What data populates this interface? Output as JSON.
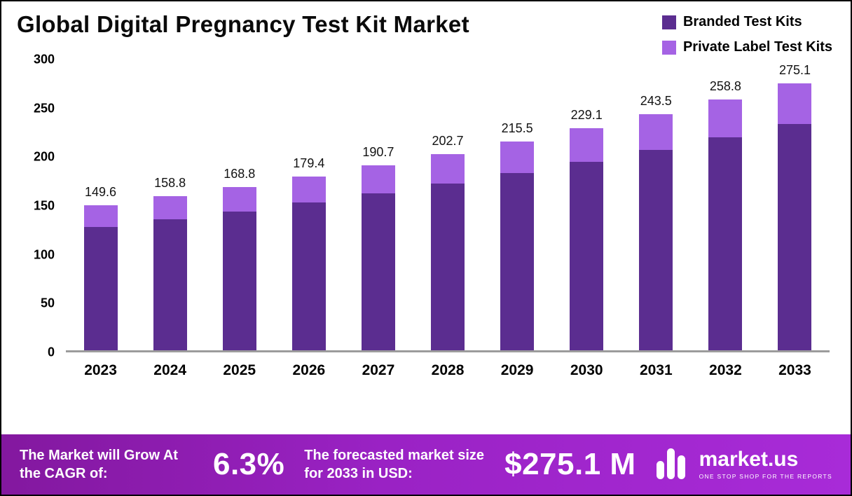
{
  "title": "Global Digital Pregnancy Test Kit Market",
  "legend": [
    {
      "label": "Branded Test Kits",
      "color": "#5b2d90"
    },
    {
      "label": "Private Label Test Kits",
      "color": "#a563e4"
    }
  ],
  "chart_data": {
    "type": "bar",
    "stacked": true,
    "title": "Global Digital Pregnancy Test Kit Market",
    "categories": [
      "2023",
      "2024",
      "2025",
      "2026",
      "2027",
      "2028",
      "2029",
      "2030",
      "2031",
      "2032",
      "2033"
    ],
    "series": [
      {
        "name": "Branded Test Kits",
        "color": "#5b2d90",
        "values": [
          127.2,
          135.0,
          143.5,
          152.5,
          162.1,
          172.3,
          183.2,
          194.7,
          207.0,
          220.0,
          233.8
        ]
      },
      {
        "name": "Private Label Test Kits",
        "color": "#a563e4",
        "values": [
          22.4,
          23.8,
          25.3,
          26.9,
          28.6,
          30.4,
          32.3,
          34.4,
          36.5,
          38.8,
          41.3
        ]
      }
    ],
    "totals": [
      149.6,
      158.8,
      168.8,
      179.4,
      190.7,
      202.7,
      215.5,
      229.1,
      243.5,
      258.8,
      275.1
    ],
    "xlabel": "",
    "ylabel": "",
    "ylim": [
      0,
      300
    ],
    "yticks": [
      0,
      50,
      100,
      150,
      200,
      250,
      300
    ],
    "grid": false,
    "legend_position": "top-right"
  },
  "banner": {
    "cagr_label": "The Market will Grow At the CAGR of:",
    "cagr_value": "6.3%",
    "forecast_label": "The forecasted market size for 2033 in USD:",
    "forecast_value": "$275.1 M",
    "brand": "market.us",
    "brand_tagline": "ONE STOP SHOP FOR THE REPORTS"
  }
}
